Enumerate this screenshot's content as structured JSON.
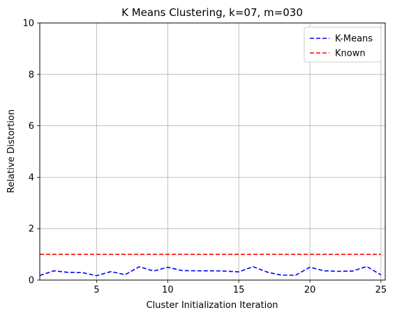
{
  "chart_data": {
    "type": "line",
    "title": "K Means Clustering, k=07, m=030",
    "xlabel": "Cluster Initialization Iteration",
    "ylabel": "Relative Distortion",
    "xlim": [
      1,
      25.3
    ],
    "ylim": [
      0,
      10
    ],
    "xticks": [
      5,
      10,
      15,
      20,
      25
    ],
    "yticks": [
      0,
      2,
      4,
      6,
      8,
      10
    ],
    "grid": true,
    "legend_position": "top-right",
    "series": [
      {
        "name": "K-Means",
        "color": "#0000ff",
        "style": "dashed",
        "x": [
          1,
          2,
          3,
          4,
          5,
          6,
          7,
          8,
          9,
          10,
          11,
          12,
          13,
          14,
          15,
          16,
          17,
          18,
          19,
          20,
          21,
          22,
          23,
          24,
          25
        ],
        "values": [
          0.18,
          0.36,
          0.3,
          0.29,
          0.17,
          0.33,
          0.21,
          0.52,
          0.35,
          0.5,
          0.37,
          0.36,
          0.36,
          0.35,
          0.32,
          0.52,
          0.31,
          0.19,
          0.19,
          0.5,
          0.36,
          0.34,
          0.35,
          0.53,
          0.2
        ]
      },
      {
        "name": "Known",
        "color": "#ff0000",
        "style": "dashed",
        "x": [
          1,
          25
        ],
        "values": [
          1.0,
          1.0
        ]
      }
    ]
  }
}
